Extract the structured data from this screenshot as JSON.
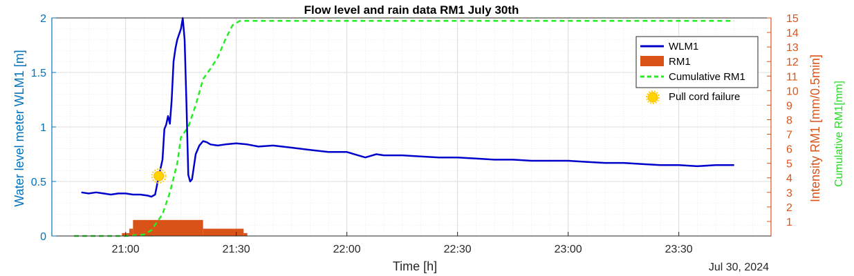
{
  "chart_data": {
    "type": "line",
    "title": "Flow level and rain data RM1 July 30th",
    "xlabel": "Time [h]",
    "date_label": "Jul 30, 2024",
    "x_range": [
      "20:40",
      "23:55"
    ],
    "x_ticks": [
      "21:00",
      "21:30",
      "22:00",
      "22:30",
      "23:00",
      "23:30"
    ],
    "grid": true,
    "legend_position": "top-right",
    "colors": {
      "wlm": "#0000CD",
      "rain": "#D95319",
      "cumulative": "#22EE22",
      "left_axis": "#0072BD",
      "right_axis": "#D95319",
      "marker": "#FFD400"
    },
    "axes": {
      "left": {
        "label": "Water level meter WLM1 [m]",
        "ylim": [
          0,
          2
        ],
        "ticks": [
          "0",
          "0.5",
          "1",
          "1.5",
          "2"
        ]
      },
      "right": {
        "label": "Intensity RM1 [mm/0.5min]",
        "ylim": [
          0,
          15
        ],
        "ticks": [
          "1",
          "2",
          "3",
          "4",
          "5",
          "6",
          "7",
          "8",
          "9",
          "10",
          "11",
          "12",
          "13",
          "14",
          "15"
        ]
      },
      "right2": {
        "label": "Cumulative RM1[mm]"
      }
    },
    "legend": [
      {
        "key": "wlm",
        "label": "WLM1"
      },
      {
        "key": "rain",
        "label": "RM1"
      },
      {
        "key": "cumulative",
        "label": "Cumulative RM1"
      },
      {
        "key": "marker",
        "label": "Pull cord failure"
      }
    ],
    "series": [
      {
        "name": "WLM1",
        "axis": "left",
        "points": [
          [
            "20:48",
            0.4
          ],
          [
            "20:50",
            0.39
          ],
          [
            "20:52",
            0.4
          ],
          [
            "20:54",
            0.39
          ],
          [
            "20:56",
            0.38
          ],
          [
            "20:58",
            0.39
          ],
          [
            "21:00",
            0.39
          ],
          [
            "21:02",
            0.38
          ],
          [
            "21:04",
            0.38
          ],
          [
            "21:06",
            0.37
          ],
          [
            "21:07",
            0.36
          ],
          [
            "21:08",
            0.38
          ],
          [
            "21:09",
            0.55
          ],
          [
            "21:10",
            0.7
          ],
          [
            "21:10.5",
            0.98
          ],
          [
            "21:11",
            1.02
          ],
          [
            "21:11.5",
            1.1
          ],
          [
            "21:12",
            1.03
          ],
          [
            "21:12.5",
            1.25
          ],
          [
            "21:13",
            1.6
          ],
          [
            "21:13.5",
            1.72
          ],
          [
            "21:14",
            1.8
          ],
          [
            "21:14.5",
            1.85
          ],
          [
            "21:15",
            1.9
          ],
          [
            "21:15.5",
            2.0
          ],
          [
            "21:16",
            1.8
          ],
          [
            "21:16.5",
            1.2
          ],
          [
            "21:17",
            0.56
          ],
          [
            "21:17.5",
            0.5
          ],
          [
            "21:18",
            0.52
          ],
          [
            "21:19",
            0.75
          ],
          [
            "21:20",
            0.83
          ],
          [
            "21:21",
            0.87
          ],
          [
            "21:22",
            0.86
          ],
          [
            "21:23",
            0.84
          ],
          [
            "21:25",
            0.83
          ],
          [
            "21:27",
            0.84
          ],
          [
            "21:30",
            0.85
          ],
          [
            "21:33",
            0.84
          ],
          [
            "21:36",
            0.82
          ],
          [
            "21:40",
            0.83
          ],
          [
            "21:45",
            0.81
          ],
          [
            "21:50",
            0.79
          ],
          [
            "21:55",
            0.77
          ],
          [
            "22:00",
            0.77
          ],
          [
            "22:03",
            0.74
          ],
          [
            "22:05",
            0.72
          ],
          [
            "22:08",
            0.75
          ],
          [
            "22:10",
            0.74
          ],
          [
            "22:15",
            0.74
          ],
          [
            "22:20",
            0.73
          ],
          [
            "22:25",
            0.72
          ],
          [
            "22:30",
            0.72
          ],
          [
            "22:35",
            0.71
          ],
          [
            "22:40",
            0.7
          ],
          [
            "22:45",
            0.7
          ],
          [
            "22:50",
            0.69
          ],
          [
            "22:55",
            0.69
          ],
          [
            "23:00",
            0.69
          ],
          [
            "23:05",
            0.68
          ],
          [
            "23:10",
            0.67
          ],
          [
            "23:15",
            0.67
          ],
          [
            "23:20",
            0.66
          ],
          [
            "23:25",
            0.65
          ],
          [
            "23:30",
            0.65
          ],
          [
            "23:35",
            0.64
          ],
          [
            "23:40",
            0.65
          ],
          [
            "23:45",
            0.65
          ]
        ]
      },
      {
        "name": "RM1",
        "axis": "right",
        "bar_width_min": 0.5,
        "intervals": [
          [
            "20:59",
            0.2
          ],
          [
            "21:01",
            0.5
          ],
          [
            "21:02",
            1.1
          ],
          [
            "21:21",
            0.5
          ],
          [
            "21:32",
            0.2
          ]
        ],
        "end": "21:33"
      },
      {
        "name": "Cumulative RM1",
        "axis": "right",
        "points": [
          [
            "20:46",
            0.0
          ],
          [
            "21:00",
            0.0
          ],
          [
            "21:05",
            0.1
          ],
          [
            "21:07",
            0.4
          ],
          [
            "21:10",
            1.5
          ],
          [
            "21:12",
            3.0
          ],
          [
            "21:14",
            5.0
          ],
          [
            "21:15",
            6.8
          ],
          [
            "21:17",
            7.5
          ],
          [
            "21:19",
            9.0
          ],
          [
            "21:21",
            10.8
          ],
          [
            "21:23",
            11.5
          ],
          [
            "21:25",
            12.3
          ],
          [
            "21:27",
            13.5
          ],
          [
            "21:29",
            14.5
          ],
          [
            "21:31",
            14.8
          ],
          [
            "23:45",
            14.8
          ]
        ]
      }
    ],
    "annotations": [
      {
        "label": "Pull cord failure",
        "x": "21:09",
        "y": 0.55,
        "axis": "left"
      }
    ]
  }
}
